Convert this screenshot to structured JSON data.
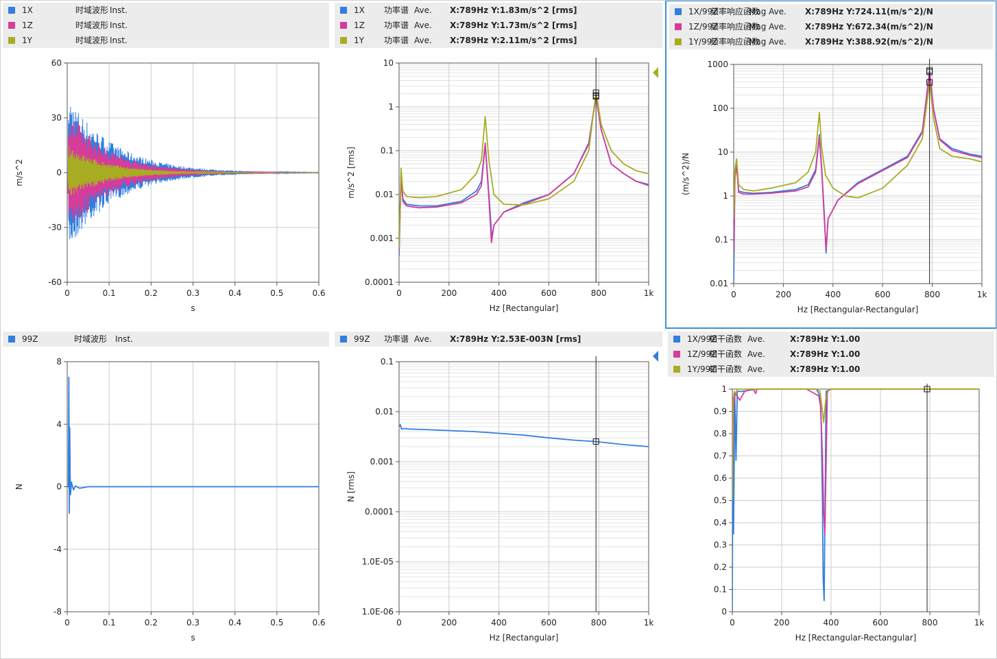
{
  "colors": {
    "blue": "#2f7fe0",
    "magenta": "#d63c9a",
    "olive": "#a8ac22",
    "grid_major": "#cccccc",
    "grid_minor": "#e3e3e3",
    "cursor": "#222222",
    "axis": "#555555",
    "selected_border": "#3d8fd6"
  },
  "panels": [
    {
      "id": "p1",
      "legend": [
        {
          "color": "blue",
          "ch": "1X",
          "fn": "时域波形",
          "stat": "Inst.",
          "val": ""
        },
        {
          "color": "magenta",
          "ch": "1Z",
          "fn": "时域波形",
          "stat": "Inst.",
          "val": ""
        },
        {
          "color": "olive",
          "ch": "1Y",
          "fn": "时域波形",
          "stat": "Inst.",
          "val": ""
        }
      ],
      "ylabel": "m/s^2",
      "xlabel": "s"
    },
    {
      "id": "p2",
      "legend": [
        {
          "color": "blue",
          "ch": "1X",
          "fn": "功率谱",
          "stat": "Ave.",
          "val": "X:789Hz Y:1.83m/s^2 [rms]"
        },
        {
          "color": "magenta",
          "ch": "1Z",
          "fn": "功率谱",
          "stat": "Ave.",
          "val": "X:789Hz Y:1.73m/s^2 [rms]"
        },
        {
          "color": "olive",
          "ch": "1Y",
          "fn": "功率谱",
          "stat": "Ave.",
          "val": "X:789Hz Y:2.11m/s^2 [rms]"
        }
      ],
      "ylabel": "m/s^2 [rms]",
      "xlabel": "Hz [Rectangular]"
    },
    {
      "id": "p3",
      "legend": [
        {
          "color": "blue",
          "ch": "1X/99Z",
          "fn": "频率响应函数",
          "stat": "Mag  Ave.",
          "val": "X:789Hz Y:724.11(m/s^2)/N"
        },
        {
          "color": "magenta",
          "ch": "1Z/99Z",
          "fn": "频率响应函数",
          "stat": "Mag  Ave.",
          "val": "X:789Hz Y:672.34(m/s^2)/N"
        },
        {
          "color": "olive",
          "ch": "1Y/99Z",
          "fn": "频率响应函数",
          "stat": "Mag  Ave.",
          "val": "X:789Hz Y:388.92(m/s^2)/N"
        }
      ],
      "ylabel": "(m/s^2)/N",
      "xlabel": "Hz [Rectangular-Rectangular]"
    },
    {
      "id": "p4",
      "legend": [
        {
          "color": "blue",
          "ch": "99Z",
          "fn": "时域波形",
          "stat": "Inst.",
          "val": ""
        }
      ],
      "ylabel": "N",
      "xlabel": "s"
    },
    {
      "id": "p5",
      "legend": [
        {
          "color": "blue",
          "ch": "99Z",
          "fn": "功率谱",
          "stat": "Ave.",
          "val": "X:789Hz Y:2.53E-003N [rms]"
        }
      ],
      "ylabel": "N [rms]",
      "xlabel": "Hz [Rectangular]"
    },
    {
      "id": "p6",
      "legend": [
        {
          "color": "blue",
          "ch": "1X/99Z",
          "fn": "相干函数",
          "stat": "Ave.",
          "val": "X:789Hz Y:1.00"
        },
        {
          "color": "magenta",
          "ch": "1Z/99Z",
          "fn": "相干函数",
          "stat": "Ave.",
          "val": "X:789Hz Y:1.00"
        },
        {
          "color": "olive",
          "ch": "1Y/99Z",
          "fn": "相干函数",
          "stat": "Ave.",
          "val": "X:789Hz Y:1.00"
        }
      ],
      "ylabel": "",
      "xlabel": "Hz [Rectangular-Rectangular]"
    }
  ],
  "chart_data": [
    {
      "type": "line",
      "panel": "p1",
      "xlabel": "s",
      "ylabel": "m/s^2",
      "xlim": [
        0,
        0.6
      ],
      "ylim": [
        -60,
        60
      ],
      "xticks": [
        "0",
        "0.1",
        "0.2",
        "0.3",
        "0.4",
        "0.5",
        "0.6"
      ],
      "xtick_values": [
        0,
        0.1,
        0.2,
        0.3,
        0.4,
        0.5,
        0.6
      ],
      "yticks": [
        "60",
        "30",
        "0",
        "-30",
        "-60"
      ],
      "ytick_values": [
        60,
        30,
        0,
        -30,
        -60
      ],
      "series": [
        {
          "name": "1X",
          "color": "blue",
          "envelope_peak": 42,
          "decay_s": 0.11
        },
        {
          "name": "1Z",
          "color": "magenta",
          "envelope_peak": 34,
          "decay_s": 0.1
        },
        {
          "name": "1Y",
          "color": "olive",
          "envelope_peak": 15,
          "decay_s": 0.09
        }
      ]
    },
    {
      "type": "line",
      "panel": "p2",
      "scale": "log",
      "xlabel": "Hz [Rectangular]",
      "ylabel": "m/s^2 [rms]",
      "xlim": [
        0,
        1000
      ],
      "ylim": [
        0.0001,
        10
      ],
      "xticks": [
        "0",
        "200",
        "400",
        "600",
        "800",
        "1k"
      ],
      "xtick_values": [
        0,
        200,
        400,
        600,
        800,
        1000
      ],
      "yticks": [
        "10",
        "1",
        "0.1",
        "0.01",
        "0.001",
        "0.0001"
      ],
      "ytick_values": [
        10,
        1,
        0.1,
        0.01,
        0.001,
        0.0001
      ],
      "cursor_x": 789,
      "series": [
        {
          "name": "1X",
          "color": "blue",
          "x": [
            0,
            8,
            15,
            30,
            80,
            150,
            250,
            310,
            330,
            345,
            360,
            372,
            380,
            420,
            500,
            600,
            700,
            760,
            789,
            810,
            850,
            900,
            950,
            1000
          ],
          "y": [
            0.0004,
            0.03,
            0.008,
            0.006,
            0.0055,
            0.0055,
            0.007,
            0.012,
            0.02,
            0.15,
            0.01,
            0.001,
            0.002,
            0.004,
            0.0065,
            0.01,
            0.03,
            0.15,
            1.83,
            0.3,
            0.05,
            0.03,
            0.02,
            0.017
          ]
        },
        {
          "name": "1Z",
          "color": "magenta",
          "x": [
            0,
            8,
            15,
            30,
            80,
            150,
            250,
            310,
            330,
            345,
            360,
            370,
            380,
            420,
            500,
            600,
            700,
            760,
            789,
            810,
            850,
            900,
            950,
            1000
          ],
          "y": [
            0.0005,
            0.025,
            0.007,
            0.0055,
            0.005,
            0.0052,
            0.0065,
            0.01,
            0.016,
            0.14,
            0.008,
            0.0008,
            0.002,
            0.004,
            0.006,
            0.01,
            0.03,
            0.14,
            1.73,
            0.3,
            0.05,
            0.03,
            0.02,
            0.016
          ]
        },
        {
          "name": "1Y",
          "color": "olive",
          "x": [
            0,
            8,
            15,
            30,
            80,
            150,
            250,
            310,
            330,
            345,
            360,
            380,
            420,
            500,
            600,
            700,
            760,
            789,
            810,
            850,
            900,
            950,
            1000
          ],
          "y": [
            0.0006,
            0.04,
            0.012,
            0.009,
            0.0085,
            0.009,
            0.013,
            0.03,
            0.06,
            0.6,
            0.06,
            0.01,
            0.006,
            0.0058,
            0.008,
            0.02,
            0.1,
            2.11,
            0.4,
            0.1,
            0.05,
            0.035,
            0.03
          ]
        }
      ]
    },
    {
      "type": "line",
      "panel": "p3",
      "scale": "log",
      "xlabel": "Hz [Rectangular-Rectangular]",
      "ylabel": "(m/s^2)/N",
      "xlim": [
        0,
        1000
      ],
      "ylim": [
        0.01,
        1000
      ],
      "xticks": [
        "0",
        "200",
        "400",
        "600",
        "800",
        "1k"
      ],
      "xtick_values": [
        0,
        200,
        400,
        600,
        800,
        1000
      ],
      "yticks": [
        "1000",
        "100",
        "10",
        "1",
        "0.1",
        "0.01"
      ],
      "ytick_values": [
        1000,
        100,
        10,
        1,
        0.1,
        0.01
      ],
      "cursor_x": 789,
      "series": [
        {
          "name": "1X/99Z",
          "color": "blue",
          "x": [
            0,
            5,
            12,
            20,
            40,
            80,
            150,
            250,
            300,
            330,
            345,
            355,
            365,
            372,
            380,
            420,
            500,
            600,
            700,
            760,
            789,
            805,
            830,
            880,
            950,
            1000
          ],
          "y": [
            0.01,
            3,
            5,
            1.3,
            1.2,
            1.15,
            1.2,
            1.4,
            1.8,
            4,
            25,
            4,
            0.4,
            0.05,
            0.3,
            0.8,
            2,
            4,
            8,
            30,
            724,
            100,
            20,
            12,
            9,
            8
          ]
        },
        {
          "name": "1Z/99Z",
          "color": "magenta",
          "x": [
            0,
            5,
            12,
            20,
            40,
            80,
            150,
            250,
            300,
            330,
            345,
            355,
            365,
            372,
            380,
            420,
            500,
            600,
            700,
            760,
            789,
            805,
            830,
            880,
            950,
            1000
          ],
          "y": [
            0.05,
            2.5,
            5,
            1.2,
            1.1,
            1.1,
            1.15,
            1.3,
            1.6,
            3.5,
            22,
            3.5,
            0.3,
            0.06,
            0.3,
            0.8,
            1.9,
            3.8,
            7.5,
            28,
            672,
            95,
            19,
            11,
            8.5,
            7.5
          ]
        },
        {
          "name": "1Y/99Z",
          "color": "olive",
          "x": [
            0,
            5,
            12,
            20,
            40,
            80,
            150,
            250,
            300,
            330,
            345,
            355,
            370,
            400,
            450,
            500,
            600,
            700,
            760,
            789,
            805,
            830,
            880,
            950,
            1000
          ],
          "y": [
            0.3,
            4,
            7,
            1.8,
            1.4,
            1.3,
            1.5,
            2,
            3.5,
            10,
            80,
            12,
            3,
            1.5,
            1,
            0.9,
            1.5,
            5,
            20,
            389,
            60,
            12,
            8,
            7,
            6
          ]
        }
      ]
    },
    {
      "type": "line",
      "panel": "p4",
      "xlabel": "s",
      "ylabel": "N",
      "xlim": [
        0,
        0.6
      ],
      "ylim": [
        -8,
        8
      ],
      "xticks": [
        "0",
        "0.1",
        "0.2",
        "0.3",
        "0.4",
        "0.5",
        "0.6"
      ],
      "xtick_values": [
        0,
        0.1,
        0.2,
        0.3,
        0.4,
        0.5,
        0.6
      ],
      "yticks": [
        "8",
        "4",
        "0",
        "-4",
        "-8"
      ],
      "ytick_values": [
        8,
        4,
        0,
        -4,
        -8
      ],
      "series": [
        {
          "name": "99Z",
          "color": "blue",
          "x": [
            0,
            0.003,
            0.004,
            0.005,
            0.006,
            0.007,
            0.008,
            0.01,
            0.015,
            0.02,
            0.03,
            0.05,
            0.1,
            0.6
          ],
          "y": [
            0,
            0,
            7,
            -1.7,
            3.8,
            0.6,
            -0.5,
            0.3,
            -0.2,
            0.05,
            -0.1,
            0,
            0,
            0
          ]
        }
      ]
    },
    {
      "type": "line",
      "panel": "p5",
      "scale": "log",
      "xlabel": "Hz [Rectangular]",
      "ylabel": "N [rms]",
      "xlim": [
        0,
        1000
      ],
      "ylim": [
        1e-06,
        0.1
      ],
      "xticks": [
        "0",
        "200",
        "400",
        "600",
        "800",
        "1k"
      ],
      "xtick_values": [
        0,
        200,
        400,
        600,
        800,
        1000
      ],
      "yticks": [
        "0.1",
        "0.01",
        "0.001",
        "0.0001",
        "1.0E-05",
        "1.0E-06"
      ],
      "ytick_values": [
        0.1,
        0.01,
        0.001,
        0.0001,
        1e-05,
        1e-06
      ],
      "cursor_x": 789,
      "series": [
        {
          "name": "99Z",
          "color": "blue",
          "x": [
            0,
            5,
            10,
            20,
            40,
            100,
            200,
            300,
            400,
            500,
            600,
            700,
            789,
            900,
            1000
          ],
          "y": [
            0.005,
            0.0055,
            0.0045,
            0.0046,
            0.0045,
            0.0044,
            0.0042,
            0.004,
            0.0037,
            0.0034,
            0.003,
            0.0027,
            0.00253,
            0.0022,
            0.002
          ]
        }
      ]
    },
    {
      "type": "line",
      "panel": "p6",
      "xlabel": "Hz [Rectangular-Rectangular]",
      "ylabel": "",
      "xlim": [
        0,
        1000
      ],
      "ylim": [
        0,
        1
      ],
      "xticks": [
        "0",
        "200",
        "400",
        "600",
        "800",
        "1k"
      ],
      "xtick_values": [
        0,
        200,
        400,
        600,
        800,
        1000
      ],
      "yticks": [
        "1",
        "0.9",
        "0.8",
        "0.7",
        "0.6",
        "0.5",
        "0.4",
        "0.3",
        "0.2",
        "0.1",
        "0"
      ],
      "ytick_values": [
        1,
        0.9,
        0.8,
        0.7,
        0.6,
        0.5,
        0.4,
        0.3,
        0.2,
        0.1,
        0
      ],
      "cursor_x": 789,
      "series": [
        {
          "name": "1X/99Z",
          "color": "blue",
          "x": [
            0,
            2,
            5,
            10,
            15,
            20,
            40,
            100,
            300,
            340,
            355,
            360,
            365,
            368,
            372,
            380,
            400,
            500,
            789,
            1000
          ],
          "y": [
            0,
            0.9,
            0.35,
            0.98,
            0.68,
            0.99,
            0.99,
            1,
            1,
            1,
            0.97,
            0.85,
            0.5,
            0.15,
            0.05,
            0.99,
            1,
            1,
            1,
            1
          ]
        },
        {
          "name": "1Z/99Z",
          "color": "magenta",
          "x": [
            0,
            5,
            10,
            20,
            30,
            50,
            85,
            95,
            100,
            300,
            350,
            358,
            365,
            370,
            375,
            385,
            400,
            500,
            789,
            1000
          ],
          "y": [
            0.55,
            0.9,
            0.98,
            0.97,
            0.95,
            0.99,
            1,
            0.98,
            1,
            1,
            0.97,
            0.92,
            0.7,
            0.45,
            0.35,
            0.99,
            1,
            1,
            1,
            1
          ]
        },
        {
          "name": "1Y/99Z",
          "color": "olive",
          "x": [
            0,
            3,
            8,
            15,
            20,
            40,
            100,
            300,
            340,
            355,
            365,
            370,
            378,
            390,
            500,
            789,
            1000
          ],
          "y": [
            0.5,
            0.95,
            0.99,
            0.98,
            1,
            1,
            1,
            1,
            1,
            0.99,
            0.9,
            0.85,
            0.95,
            1,
            1,
            1,
            1
          ]
        }
      ]
    }
  ]
}
